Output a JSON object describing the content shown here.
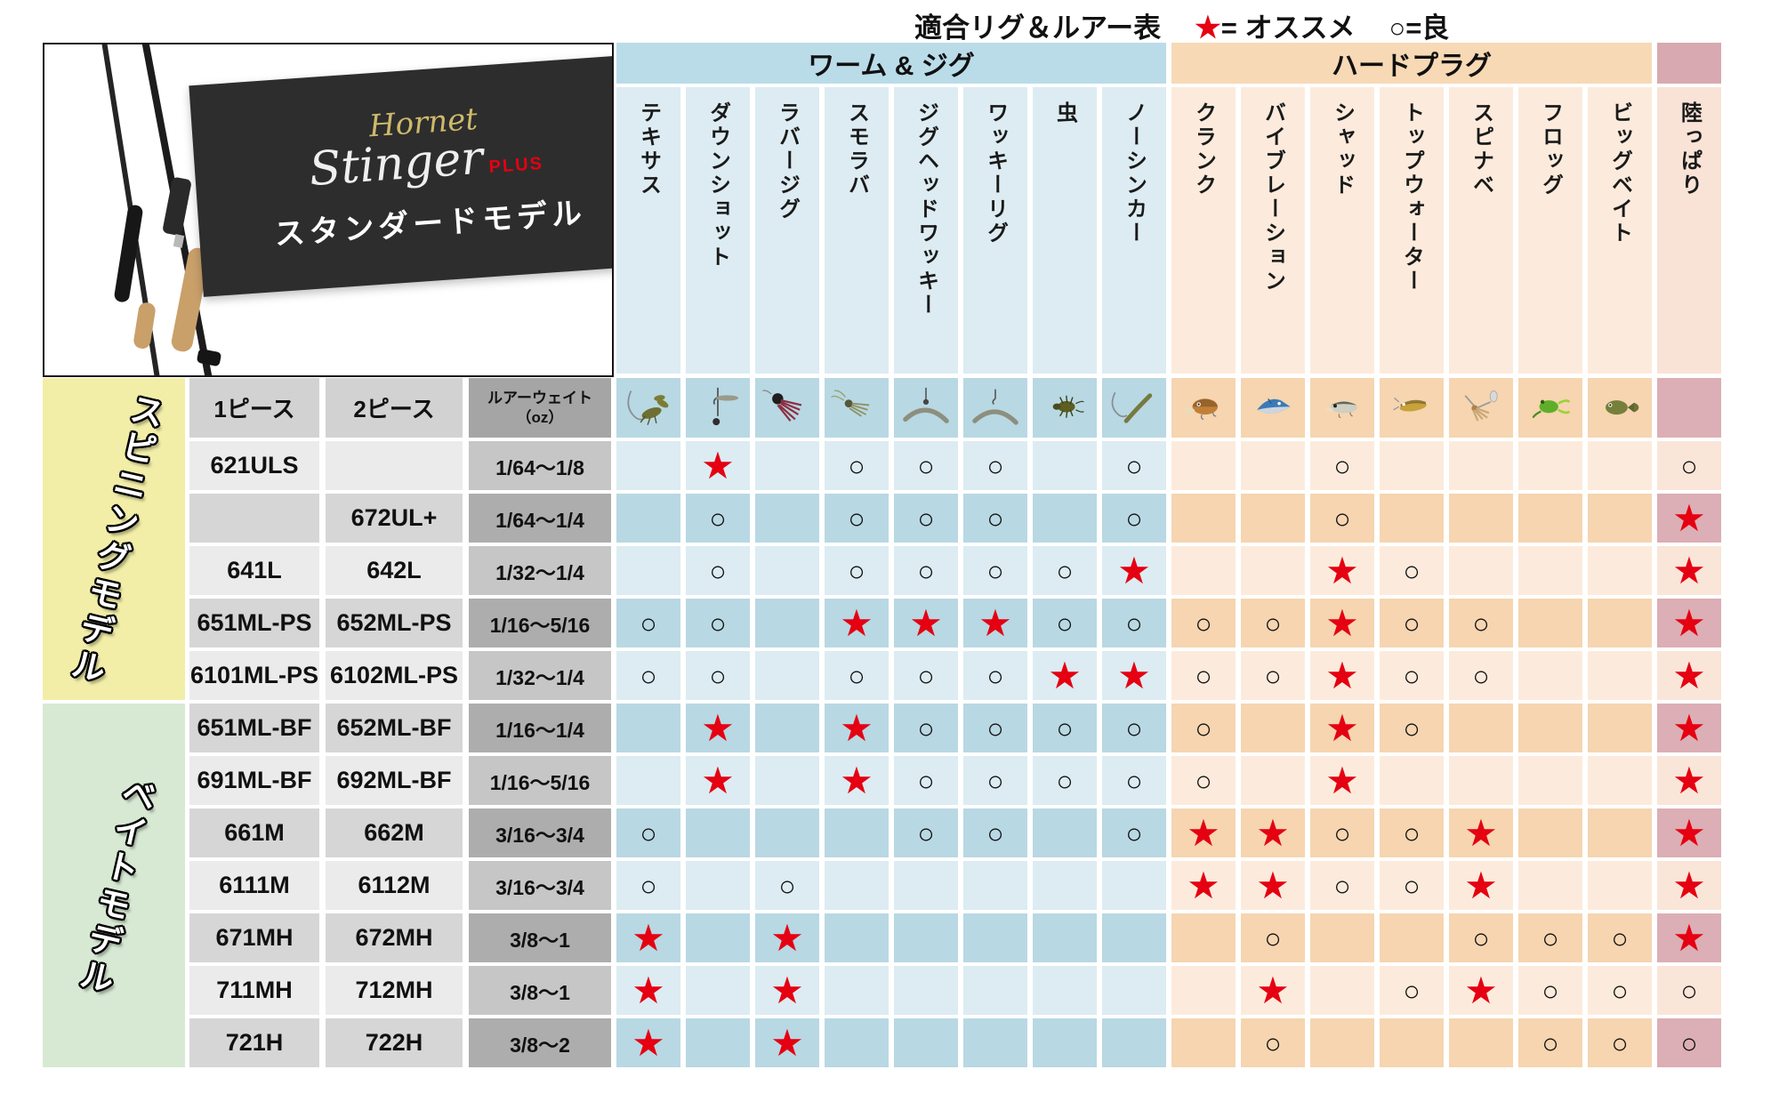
{
  "legend": {
    "title": "適合リグ＆ルアー表",
    "star_symbol": "★",
    "star_text": "= オススメ",
    "good_symbol": "○",
    "good_text": "=良"
  },
  "product": {
    "logo_line1": "Hornet",
    "logo_line2": "Stinger",
    "logo_suffix": "PLUS",
    "subtitle": "スタンダードモデル"
  },
  "left_headers": {
    "piece1": "1ピース",
    "piece2": "2ピース",
    "weight_line1": "ルアーウェイト",
    "weight_line2": "（oz）"
  },
  "row_groups": {
    "spinning": "スピニングモデル",
    "bait": "ベイトモデル"
  },
  "column_groups": [
    {
      "id": "worm",
      "label": "ワーム & ジグ"
    },
    {
      "id": "hard",
      "label": "ハードプラグ"
    }
  ],
  "columns": [
    {
      "label": "テキサス",
      "group": "worm",
      "icon": "crawfish-icon"
    },
    {
      "label": "ダウンショット",
      "group": "worm",
      "icon": "dropshot-icon"
    },
    {
      "label": "ラバージグ",
      "group": "worm",
      "icon": "rubber-jig-icon"
    },
    {
      "label": "スモラバ",
      "group": "worm",
      "icon": "small-rubber-jig-icon"
    },
    {
      "label": "ジグヘッドワッキー",
      "group": "worm",
      "icon": "jighead-wacky-icon"
    },
    {
      "label": "ワッキーリグ",
      "group": "worm",
      "icon": "wacky-rig-icon"
    },
    {
      "label": "虫",
      "group": "worm",
      "icon": "bug-icon"
    },
    {
      "label": "ノーシンカー",
      "group": "worm",
      "icon": "no-sinker-icon"
    },
    {
      "label": "クランク",
      "group": "hard",
      "icon": "crankbait-icon"
    },
    {
      "label": "バイブレーション",
      "group": "hard",
      "icon": "vibration-icon"
    },
    {
      "label": "シャッド",
      "group": "hard",
      "icon": "shad-icon"
    },
    {
      "label": "トップウォーター",
      "group": "hard",
      "icon": "topwater-icon"
    },
    {
      "label": "スピナベ",
      "group": "hard",
      "icon": "spinnerbait-icon"
    },
    {
      "label": "フロッグ",
      "group": "hard",
      "icon": "frog-icon"
    },
    {
      "label": "ビッグベイト",
      "group": "hard",
      "icon": "bigbait-icon"
    },
    {
      "label": "陸っぱり",
      "group": "oka",
      "icon": null
    }
  ],
  "rows": [
    {
      "group": "spinning",
      "one_piece": "621ULS",
      "two_piece": "",
      "weight": "1/64～1/8",
      "marks": [
        "",
        "star",
        "",
        "good",
        "good",
        "good",
        "",
        "good",
        "",
        "",
        "good",
        "",
        "",
        "",
        "",
        "good"
      ]
    },
    {
      "group": "spinning",
      "one_piece": "",
      "two_piece": "672UL+",
      "weight": "1/64～1/4",
      "marks": [
        "",
        "good",
        "",
        "good",
        "good",
        "good",
        "",
        "good",
        "",
        "",
        "good",
        "",
        "",
        "",
        "",
        "star"
      ]
    },
    {
      "group": "spinning",
      "one_piece": "641L",
      "two_piece": "642L",
      "weight": "1/32～1/4",
      "marks": [
        "",
        "good",
        "",
        "good",
        "good",
        "good",
        "good",
        "star",
        "",
        "",
        "star",
        "good",
        "",
        "",
        "",
        "star"
      ]
    },
    {
      "group": "spinning",
      "one_piece": "651ML-PS",
      "two_piece": "652ML-PS",
      "weight": "1/16～5/16",
      "marks": [
        "good",
        "good",
        "",
        "star",
        "star",
        "star",
        "good",
        "good",
        "good",
        "good",
        "star",
        "good",
        "good",
        "",
        "",
        "star"
      ]
    },
    {
      "group": "spinning",
      "one_piece": "6101ML-PS",
      "two_piece": "6102ML-PS",
      "weight": "1/32～1/4",
      "marks": [
        "good",
        "good",
        "",
        "good",
        "good",
        "good",
        "star",
        "star",
        "good",
        "good",
        "star",
        "good",
        "good",
        "",
        "",
        "star"
      ]
    },
    {
      "group": "bait",
      "one_piece": "651ML-BF",
      "two_piece": "652ML-BF",
      "weight": "1/16～1/4",
      "marks": [
        "",
        "star",
        "",
        "star",
        "good",
        "good",
        "good",
        "good",
        "good",
        "",
        "star",
        "good",
        "",
        "",
        "",
        "star"
      ]
    },
    {
      "group": "bait",
      "one_piece": "691ML-BF",
      "two_piece": "692ML-BF",
      "weight": "1/16～5/16",
      "marks": [
        "",
        "star",
        "",
        "star",
        "good",
        "good",
        "good",
        "good",
        "good",
        "",
        "star",
        "",
        "",
        "",
        "",
        "star"
      ]
    },
    {
      "group": "bait",
      "one_piece": "661M",
      "two_piece": "662M",
      "weight": "3/16～3/4",
      "marks": [
        "good",
        "",
        "",
        "",
        "good",
        "good",
        "",
        "good",
        "star",
        "star",
        "good",
        "good",
        "star",
        "",
        "",
        "star"
      ]
    },
    {
      "group": "bait",
      "one_piece": "6111M",
      "two_piece": "6112M",
      "weight": "3/16～3/4",
      "marks": [
        "good",
        "",
        "good",
        "",
        "",
        "",
        "",
        "",
        "star",
        "star",
        "good",
        "good",
        "star",
        "",
        "",
        "star"
      ]
    },
    {
      "group": "bait",
      "one_piece": "671MH",
      "two_piece": "672MH",
      "weight": "3/8～1",
      "marks": [
        "star",
        "",
        "star",
        "",
        "",
        "",
        "",
        "",
        "",
        "good",
        "",
        "",
        "good",
        "good",
        "good",
        "star"
      ]
    },
    {
      "group": "bait",
      "one_piece": "711MH",
      "two_piece": "712MH",
      "weight": "3/8～1",
      "marks": [
        "star",
        "",
        "star",
        "",
        "",
        "",
        "",
        "",
        "",
        "star",
        "",
        "good",
        "star",
        "good",
        "good",
        "good"
      ]
    },
    {
      "group": "bait",
      "one_piece": "721H",
      "two_piece": "722H",
      "weight": "3/8～2",
      "marks": [
        "star",
        "",
        "star",
        "",
        "",
        "",
        "",
        "",
        "",
        "good",
        "",
        "",
        "",
        "good",
        "good",
        "good"
      ]
    }
  ],
  "colors": {
    "worm_band": "#badce9",
    "worm_light": "#dcecf2",
    "worm_dark": "#b8d8e3",
    "hard_band": "#f8d9b5",
    "hard_light": "#fcebdc",
    "hard_dark": "#f6d5b0",
    "oka_top": "#d8a9b1",
    "oka_label": "#f9e3d6",
    "oka_light": "#fae5d9",
    "oka_dark": "#dcaeb5",
    "gray_header": "#d2d2d2",
    "model_light": "#ebebeb",
    "model_dark": "#d6d6d6",
    "weight_header": "#a5a5a5",
    "weight_light": "#c6c6c6",
    "weight_dark": "#adadad",
    "spinning_bg": "#f2eea8",
    "bait_bg": "#d7e9d3",
    "star_red": "#e50012",
    "panel_dark": "#2d2d2d"
  }
}
